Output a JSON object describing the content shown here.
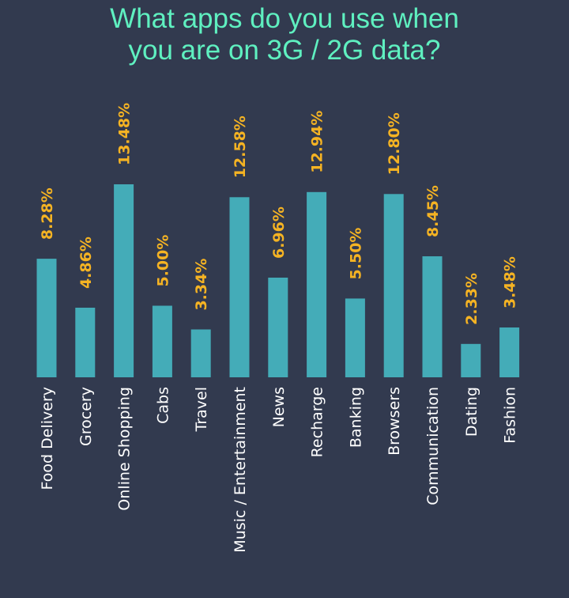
{
  "chart_data": {
    "type": "bar",
    "title_lines": [
      "What apps do you use when",
      "you are on 3G / 2G data?"
    ],
    "categories": [
      "Food Delivery",
      "Grocery",
      "Online Shopping",
      "Cabs",
      "Travel",
      "Music / Entertainment",
      "News",
      "Recharge",
      "Banking",
      "Browsers",
      "Communication",
      "Dating",
      "Fashion"
    ],
    "values": [
      8.28,
      4.86,
      13.48,
      5.0,
      3.34,
      12.58,
      6.96,
      12.94,
      5.5,
      12.8,
      8.45,
      2.33,
      3.48
    ],
    "value_labels": [
      "8.28%",
      "4.86%",
      "13.48%",
      "5.00%",
      "3.34%",
      "12.58%",
      "6.96%",
      "12.94%",
      "5.50%",
      "12.80%",
      "8.45%",
      "2.33%",
      "3.48%"
    ],
    "grid": false,
    "legend": "none",
    "colors": {
      "bar": "#44acb8",
      "value_label": "#f5b323",
      "category_label": "#ffffff",
      "title": "#5ff0c0",
      "background": "#323a4f"
    }
  }
}
